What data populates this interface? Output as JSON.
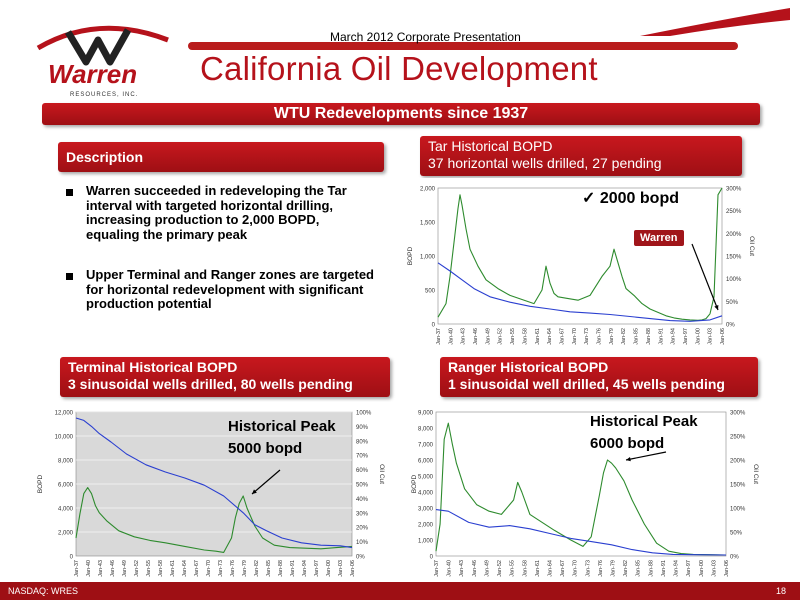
{
  "header": {
    "presentation": "March 2012 Corporate Presentation",
    "title": "California Oil Development",
    "logo_text": "Warren",
    "logo_sub": "RESOURCES, INC."
  },
  "banner": "WTU Redevelopments since 1937",
  "description": {
    "heading": "Description",
    "bullets": [
      "Warren succeeded in redeveloping the Tar interval with targeted horizontal drilling, increasing production to 2,000 BOPD, equaling the primary peak",
      "Upper Terminal and Ranger zones are targeted for horizontal redevelopment with significant production potential"
    ]
  },
  "panels": {
    "tar": {
      "title": "Tar Historical BOPD",
      "subtitle": "37 horizontal wells drilled, 27 pending"
    },
    "terminal": {
      "title": "Terminal Historical BOPD",
      "subtitle": "3 sinusoidal wells drilled, 80 wells pending"
    },
    "ranger": {
      "title": "Ranger Historical BOPD",
      "subtitle": "1 sinusoidal well drilled, 45 wells pending"
    }
  },
  "annotations": {
    "tar_peak": "✓ 2000 bopd",
    "warren": "Warren",
    "terminal_peak_1": "Historical Peak",
    "terminal_peak_2": "5000 bopd",
    "ranger_peak_1": "Historical Peak",
    "ranger_peak_2": "6000 bopd"
  },
  "footer": {
    "ticker": "NASDAQ: WRES",
    "page": "18"
  },
  "colors": {
    "red": "#b5121b",
    "green": "#2e8b2e",
    "blue": "#2a3fd0"
  },
  "chart_data": [
    {
      "id": "tar",
      "type": "line",
      "ylabel": "BOPD",
      "y2label": "Oil Cut",
      "ylim": [
        0,
        2000
      ],
      "y2lim": [
        0,
        300
      ],
      "yticks": [
        "0",
        "500",
        "1,000",
        "1,500",
        "2,000"
      ],
      "y2ticks": [
        "0%",
        "50%",
        "100%",
        "150%",
        "200%",
        "250%",
        "300%"
      ],
      "xticks": [
        "Jan-37",
        "Jan-40",
        "Jan-43",
        "Jan-46",
        "Jan-49",
        "Jan-52",
        "Jan-55",
        "Jan-58",
        "Jan-61",
        "Jan-64",
        "Jan-67",
        "Jan-70",
        "Jan-73",
        "Jan-76",
        "Jan-79",
        "Jan-82",
        "Jan-85",
        "Jan-88",
        "Jan-91",
        "Jan-94",
        "Jan-97",
        "Jan-00",
        "Jan-03",
        "Jan-06"
      ],
      "grid": false,
      "series": [
        {
          "color": "green",
          "axis": "left",
          "x": [
            1937,
            1939,
            1940,
            1941,
            1942,
            1942.5,
            1943,
            1944,
            1945,
            1947,
            1949,
            1952,
            1955,
            1958,
            1961,
            1963,
            1964,
            1965,
            1966,
            1967,
            1969,
            1972,
            1975,
            1978,
            1980,
            1981,
            1982,
            1983,
            1984,
            1986,
            1988,
            1990,
            1992,
            1994,
            1996,
            1998,
            2000,
            2002,
            2003,
            2004,
            2005,
            2006,
            2007,
            2008
          ],
          "y": [
            100,
            300,
            700,
            1200,
            1700,
            1900,
            1750,
            1400,
            1100,
            850,
            650,
            520,
            420,
            360,
            300,
            500,
            850,
            600,
            450,
            400,
            380,
            350,
            420,
            700,
            850,
            1100,
            900,
            700,
            520,
            420,
            300,
            220,
            170,
            120,
            90,
            70,
            60,
            55,
            60,
            80,
            150,
            400,
            1900,
            2000
          ]
        },
        {
          "color": "blue",
          "axis": "left",
          "x": [
            1937,
            1940,
            1943,
            1946,
            1950,
            1955,
            1960,
            1965,
            1970,
            1975,
            1980,
            1985,
            1990,
            1995,
            2000,
            2005,
            2008
          ],
          "y": [
            900,
            780,
            650,
            520,
            400,
            320,
            260,
            220,
            180,
            160,
            140,
            110,
            80,
            50,
            40,
            60,
            120
          ]
        }
      ]
    },
    {
      "id": "terminal",
      "type": "line",
      "ylabel": "BOPD",
      "y2label": "Oil Cut",
      "ylim": [
        0,
        12000
      ],
      "y2lim": [
        0,
        100
      ],
      "yticks": [
        "0",
        "2,000",
        "4,000",
        "6,000",
        "8,000",
        "10,000",
        "12,000"
      ],
      "y2ticks": [
        "0%",
        "10%",
        "20%",
        "30%",
        "40%",
        "50%",
        "60%",
        "70%",
        "80%",
        "90%",
        "100%"
      ],
      "xticks": [
        "Jan-37",
        "Jan-40",
        "Jan-43",
        "Jan-46",
        "Jan-49",
        "Jan-52",
        "Jan-55",
        "Jan-58",
        "Jan-61",
        "Jan-64",
        "Jan-67",
        "Jan-70",
        "Jan-73",
        "Jan-76",
        "Jan-79",
        "Jan-82",
        "Jan-85",
        "Jan-88",
        "Jan-91",
        "Jan-94",
        "Jan-97",
        "Jan-00",
        "Jan-03",
        "Jan-06"
      ],
      "grid": true,
      "series": [
        {
          "color": "green",
          "axis": "left",
          "x": [
            1937,
            1938,
            1939,
            1940,
            1941,
            1942,
            1943,
            1945,
            1948,
            1952,
            1956,
            1960,
            1965,
            1970,
            1973,
            1975,
            1977,
            1978,
            1979,
            1980,
            1981,
            1983,
            1985,
            1988,
            1992,
            1996,
            2000,
            2004,
            2008
          ],
          "y": [
            1500,
            3500,
            5200,
            5700,
            5200,
            4200,
            3600,
            2900,
            2100,
            1600,
            1300,
            1100,
            800,
            500,
            400,
            300,
            1500,
            3200,
            4400,
            5000,
            4000,
            2500,
            1500,
            900,
            700,
            650,
            600,
            700,
            800
          ]
        },
        {
          "color": "blue",
          "axis": "left",
          "x": [
            1937,
            1939,
            1941,
            1943,
            1946,
            1950,
            1955,
            1960,
            1965,
            1970,
            1975,
            1980,
            1983,
            1986,
            1990,
            1995,
            2000,
            2005,
            2008
          ],
          "y": [
            11500,
            11300,
            10800,
            10200,
            9500,
            8500,
            7600,
            7000,
            6500,
            5900,
            5000,
            3600,
            2600,
            2100,
            1500,
            1100,
            900,
            850,
            700
          ]
        }
      ]
    },
    {
      "id": "ranger",
      "type": "line",
      "ylabel": "BOPD",
      "y2label": "Oil Cut",
      "ylim": [
        0,
        9000
      ],
      "y2lim": [
        0,
        300
      ],
      "yticks": [
        "0",
        "1,000",
        "2,000",
        "3,000",
        "4,000",
        "5,000",
        "6,000",
        "7,000",
        "8,000",
        "9,000"
      ],
      "y2ticks": [
        "0%",
        "50%",
        "100%",
        "150%",
        "200%",
        "250%",
        "300%"
      ],
      "xticks": [
        "Jan-37",
        "Jan-40",
        "Jan-43",
        "Jan-46",
        "Jan-49",
        "Jan-52",
        "Jan-55",
        "Jan-58",
        "Jan-61",
        "Jan-64",
        "Jan-67",
        "Jan-70",
        "Jan-73",
        "Jan-76",
        "Jan-79",
        "Jan-82",
        "Jan-85",
        "Jan-88",
        "Jan-91",
        "Jan-94",
        "Jan-97",
        "Jan-00",
        "Jan-03",
        "Jan-06"
      ],
      "grid": false,
      "series": [
        {
          "color": "green",
          "axis": "left",
          "x": [
            1937,
            1938,
            1939,
            1940,
            1941,
            1942,
            1944,
            1947,
            1950,
            1953,
            1956,
            1957,
            1958,
            1960,
            1963,
            1966,
            1970,
            1973,
            1975,
            1977,
            1978,
            1979,
            1980,
            1981,
            1983,
            1985,
            1988,
            1991,
            1994,
            1997,
            2000,
            2004,
            2008
          ],
          "y": [
            300,
            2000,
            7300,
            8300,
            7000,
            5800,
            4200,
            3200,
            2800,
            2600,
            3500,
            4600,
            4000,
            2600,
            2100,
            1600,
            1000,
            600,
            1200,
            3800,
            5200,
            6000,
            5800,
            5500,
            4700,
            3500,
            2000,
            800,
            300,
            150,
            100,
            80,
            60
          ]
        },
        {
          "color": "blue",
          "axis": "left",
          "x": [
            1937,
            1940,
            1945,
            1950,
            1955,
            1960,
            1965,
            1970,
            1975,
            1980,
            1985,
            1990,
            1995,
            2000,
            2008
          ],
          "y": [
            2900,
            2800,
            2100,
            1800,
            1900,
            1700,
            1400,
            1100,
            900,
            700,
            400,
            200,
            100,
            80,
            60
          ]
        }
      ]
    }
  ]
}
